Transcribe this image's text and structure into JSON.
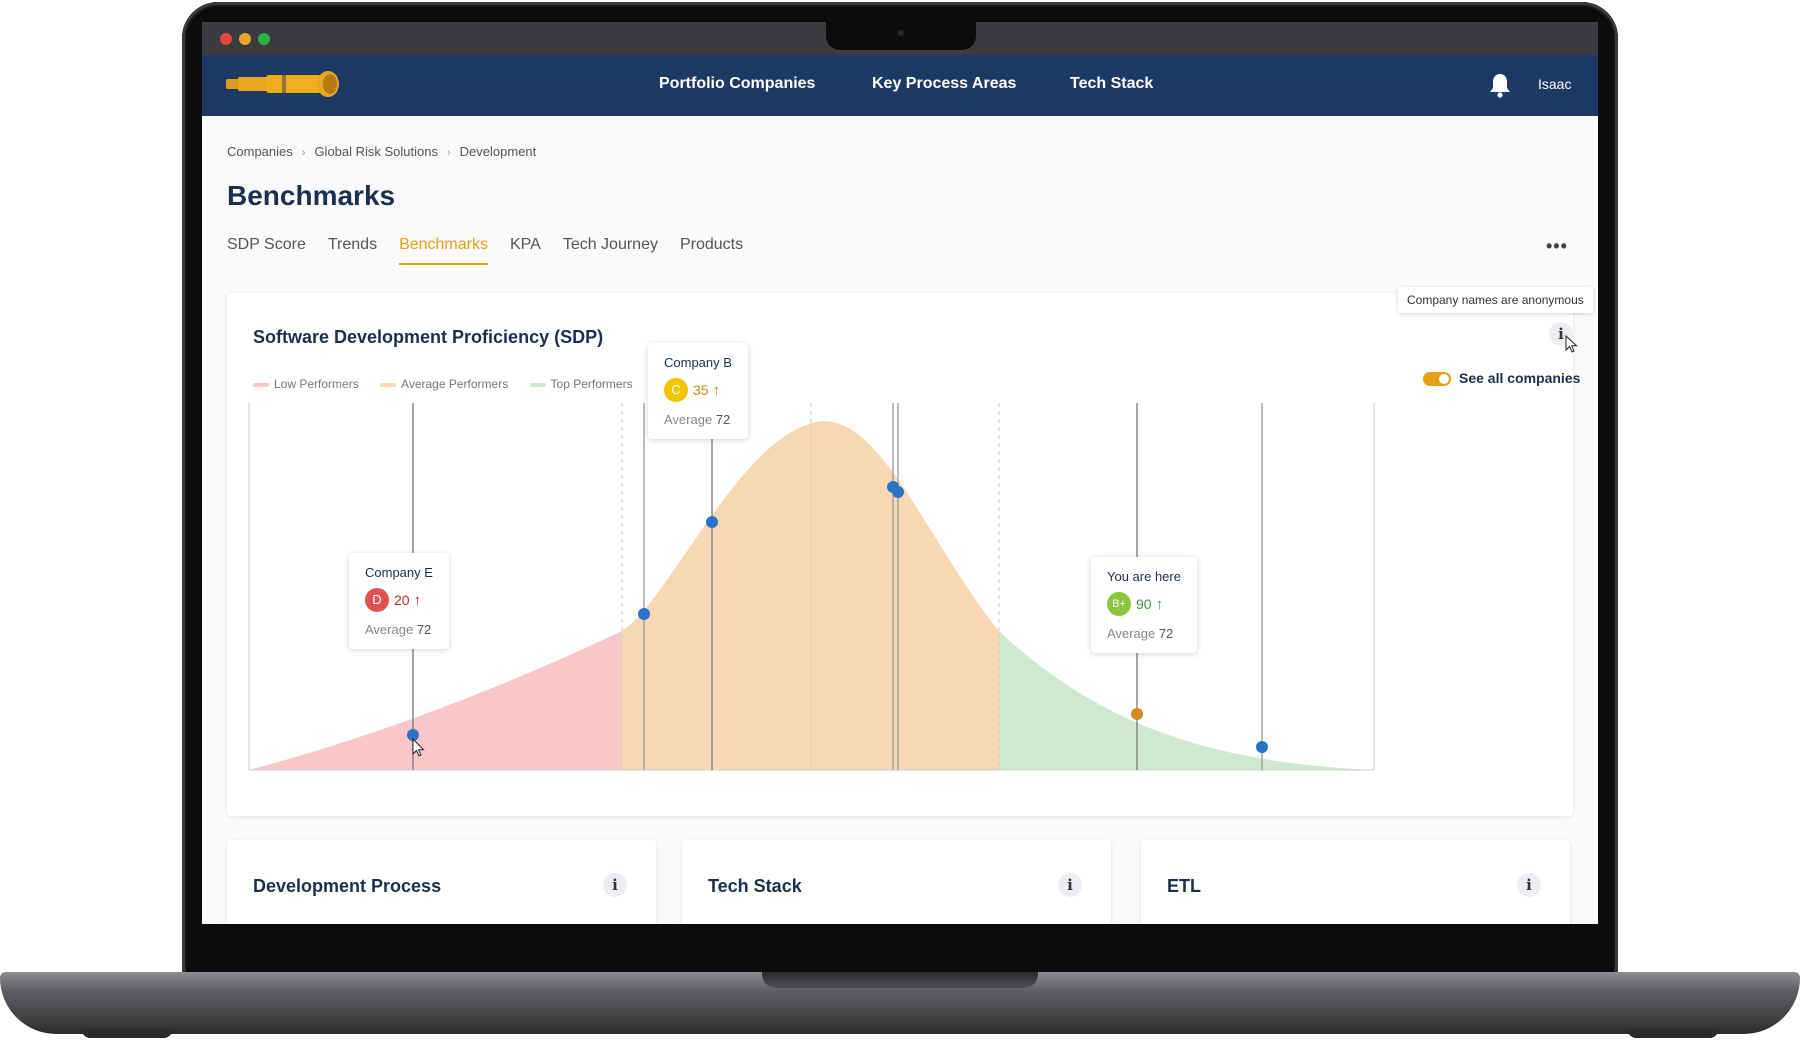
{
  "colors": {
    "nav_bg": "#1c3a64",
    "accent": "#e79f1a",
    "low": "#f9c6ca",
    "average": "#f8d8b3",
    "top": "#cfe8cf",
    "marker_blue": "#2a74c6",
    "marker_self": "#d48b1c"
  },
  "nav": {
    "logo_icon": "telescope-icon",
    "items": [
      "Portfolio Companies",
      "Key Process Areas",
      "Tech Stack"
    ],
    "user_name": "Isaac"
  },
  "breadcrumb": [
    "Companies",
    "Global Risk Solutions",
    "Development"
  ],
  "page_title": "Benchmarks",
  "tabs": [
    {
      "label": "SDP Score",
      "active": false
    },
    {
      "label": "Trends",
      "active": false
    },
    {
      "label": "Benchmarks",
      "active": true
    },
    {
      "label": "KPA",
      "active": false
    },
    {
      "label": "Tech Journey",
      "active": false
    },
    {
      "label": "Products",
      "active": false
    }
  ],
  "main_card": {
    "title": "Software Development Proficiency (SDP)",
    "tooltip": "Company names are anonymous",
    "toggle_label": "See all companies",
    "toggle_on": true,
    "legend": [
      "Low Performers",
      "Average Performers",
      "Top Performers"
    ]
  },
  "popups": {
    "company_b": {
      "name": "Company B",
      "grade": "C",
      "score": "35",
      "average_label": "Average",
      "average": "72",
      "grade_color": "#f2c500",
      "score_color": "#c98a12"
    },
    "company_e": {
      "name": "Company E",
      "grade": "D",
      "score": "20",
      "average_label": "Average",
      "average": "72",
      "grade_color": "#e05252",
      "score_color": "#c0282f"
    },
    "you": {
      "name": "You are here",
      "grade": "B+",
      "score": "90",
      "average_label": "Average",
      "average": "72",
      "grade_color": "#8cc63f",
      "score_color": "#3a9a3a"
    }
  },
  "bottom_cards": [
    "Development Process",
    "Tech Stack",
    "ETL"
  ]
}
